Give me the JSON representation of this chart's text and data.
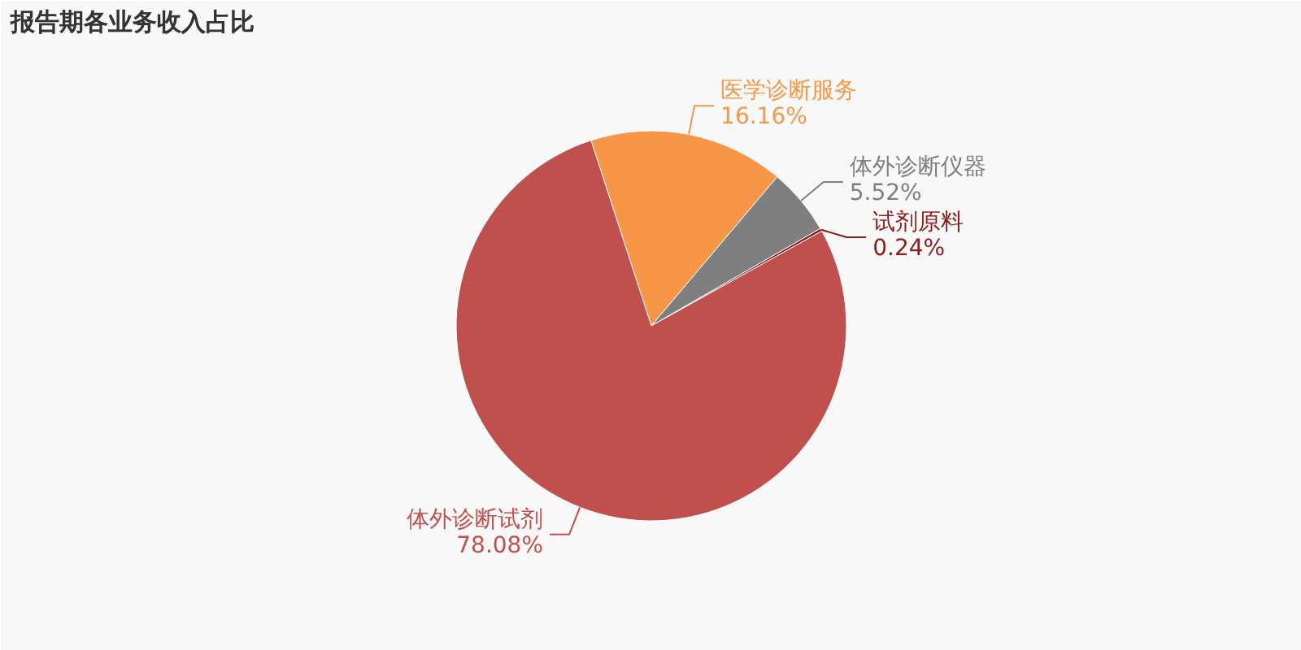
{
  "chart_data": {
    "type": "pie",
    "title": "报告期各业务收入占比",
    "categories": [
      "医学诊断服务",
      "体外诊断仪器",
      "试剂原料",
      "体外诊断试剂"
    ],
    "values": [
      16.16,
      5.52,
      0.24,
      78.08
    ],
    "colors": [
      "#f79646",
      "#7f7f7f",
      "#8b1c1c",
      "#c0504d"
    ],
    "value_labels": [
      "16.16%",
      "5.52%",
      "0.24%",
      "78.08%"
    ]
  }
}
